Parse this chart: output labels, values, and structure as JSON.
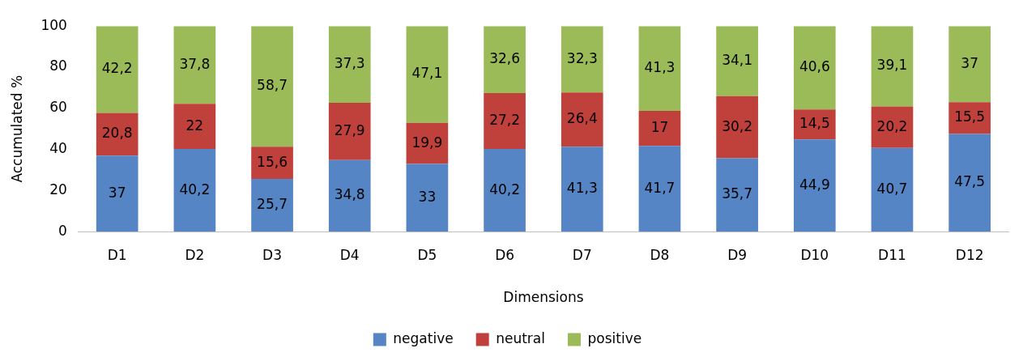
{
  "chart_data": {
    "type": "bar",
    "stacked": true,
    "xlabel": "Dimensions",
    "ylabel": "Accumulated %",
    "categories": [
      "D1",
      "D2",
      "D3",
      "D4",
      "D5",
      "D6",
      "D7",
      "D8",
      "D9",
      "D10",
      "D11",
      "D12"
    ],
    "ylim": [
      0,
      100
    ],
    "yticks": [
      0,
      20,
      40,
      60,
      80,
      100
    ],
    "grid": false,
    "legend": "bottom",
    "series": [
      {
        "name": "negative",
        "color": "#5585c5",
        "values": [
          37,
          40.2,
          25.7,
          34.8,
          33,
          40.2,
          41.3,
          41.7,
          35.7,
          44.9,
          40.7,
          47.5
        ],
        "value_labels": [
          "37",
          "40,2",
          "25,7",
          "34,8",
          "33",
          "40,2",
          "41,3",
          "41,7",
          "35,7",
          "44,9",
          "40,7",
          "47,5"
        ]
      },
      {
        "name": "neutral",
        "color": "#c0413c",
        "values": [
          20.8,
          22,
          15.6,
          27.9,
          19.9,
          27.2,
          26.4,
          17,
          30.2,
          14.5,
          20.2,
          15.5
        ],
        "value_labels": [
          "20,8",
          "22",
          "15,6",
          "27,9",
          "19,9",
          "27,2",
          "26,4",
          "17",
          "30,2",
          "14,5",
          "20,2",
          "15,5"
        ]
      },
      {
        "name": "positive",
        "color": "#9bbb59",
        "values": [
          42.2,
          37.8,
          58.7,
          37.3,
          47.1,
          32.6,
          32.3,
          41.3,
          34.1,
          40.6,
          39.1,
          37
        ],
        "value_labels": [
          "42,2",
          "37,8",
          "58,7",
          "37,3",
          "47,1",
          "32,6",
          "32,3",
          "41,3",
          "34,1",
          "40,6",
          "39,1",
          "37"
        ]
      }
    ]
  }
}
